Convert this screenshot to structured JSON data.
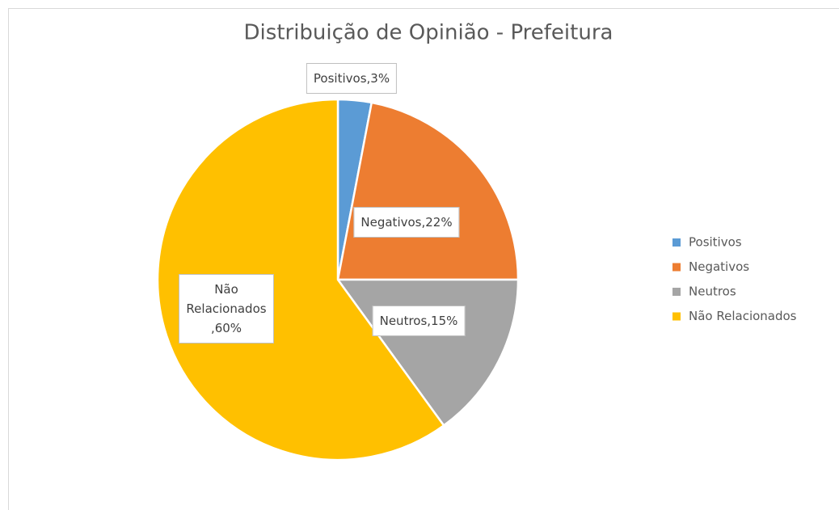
{
  "chart_data": {
    "type": "pie",
    "title": "Distribuição de Opinião - Prefeitura",
    "categories": [
      "Positivos",
      "Negativos",
      "Neutros",
      "Não Relacionados"
    ],
    "values": [
      3,
      22,
      15,
      60
    ],
    "value_labels": [
      "Positivos,3%",
      "Negativos,22%",
      "Neutros,15%",
      "Não Relacionados,60%"
    ],
    "colors": [
      "#5b9bd5",
      "#ed7d31",
      "#a5a5a5",
      "#ffc000"
    ],
    "legend": "right"
  }
}
